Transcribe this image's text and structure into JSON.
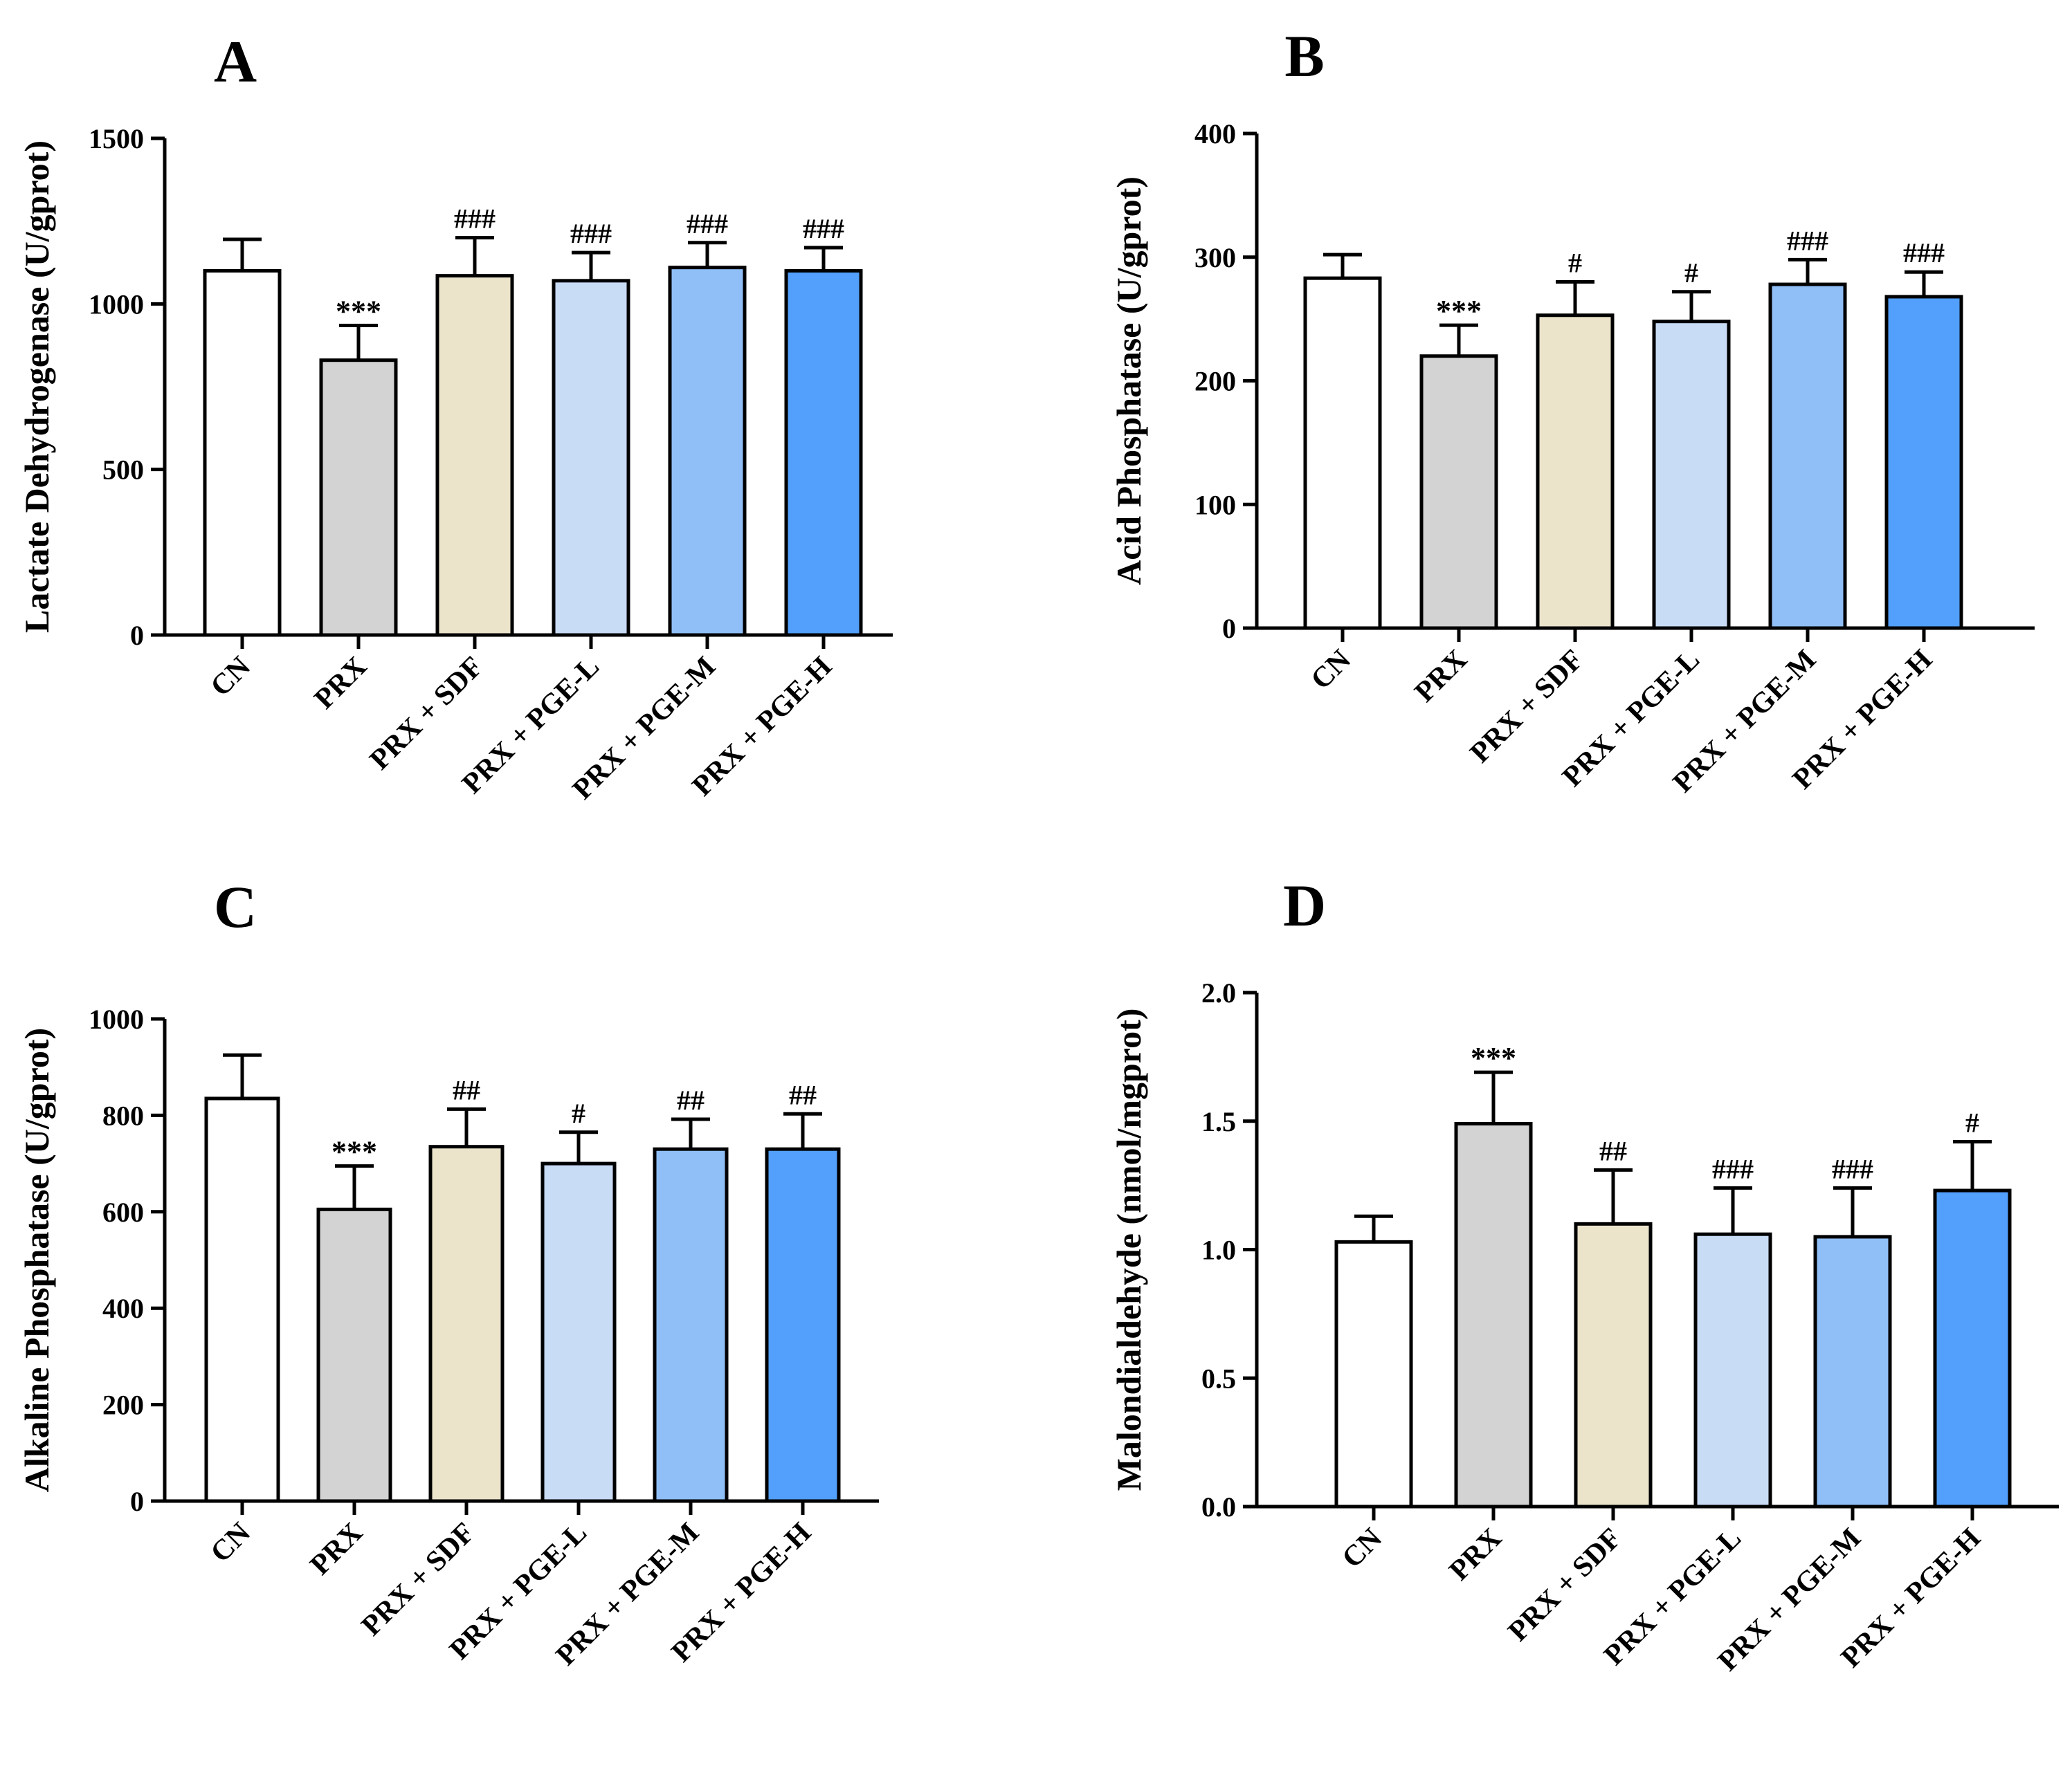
{
  "chart_data": [
    {
      "type": "bar",
      "panel": "A",
      "ylabel": "Lactate Dehydrogenase (U/gprot)",
      "categories": [
        "CN",
        "PRX",
        "PRX + SDF",
        "PRX + PGE-L",
        "PRX + PGE-M",
        "PRX + PGE-H"
      ],
      "values": [
        1100,
        830,
        1085,
        1070,
        1110,
        1100
      ],
      "errors": [
        95,
        105,
        115,
        85,
        75,
        70
      ],
      "annotations": [
        "",
        "***",
        "###",
        "###",
        "###",
        "###"
      ],
      "ylim": [
        0,
        1500
      ],
      "yticks": [
        0,
        500,
        1000,
        1500
      ]
    },
    {
      "type": "bar",
      "panel": "B",
      "ylabel": "Acid Phosphatase (U/gprot)",
      "categories": [
        "CN",
        "PRX",
        "PRX + SDF",
        "PRX + PGE-L",
        "PRX + PGE-M",
        "PRX + PGE-H"
      ],
      "values": [
        283,
        220,
        253,
        248,
        278,
        268
      ],
      "errors": [
        19,
        25,
        27,
        24,
        20,
        20
      ],
      "annotations": [
        "",
        "***",
        "#",
        "#",
        "###",
        "###"
      ],
      "ylim": [
        0,
        400
      ],
      "yticks": [
        0,
        100,
        200,
        300,
        400
      ]
    },
    {
      "type": "bar",
      "panel": "C",
      "ylabel": "Alkaline Phosphatase (U/gprot)",
      "categories": [
        "CN",
        "PRX",
        "PRX + SDF",
        "PRX + PGE-L",
        "PRX + PGE-M",
        "PRX + PGE-H"
      ],
      "values": [
        835,
        605,
        735,
        700,
        730,
        730
      ],
      "errors": [
        90,
        90,
        78,
        65,
        62,
        73
      ],
      "annotations": [
        "",
        "***",
        "##",
        "#",
        "##",
        "##"
      ],
      "ylim": [
        0,
        1000
      ],
      "yticks": [
        0,
        200,
        400,
        600,
        800,
        1000
      ]
    },
    {
      "type": "bar",
      "panel": "D",
      "ylabel": "Malondialdehyde (nmol/mgprot)",
      "categories": [
        "CN",
        "PRX",
        "PRX + SDF",
        "PRX + PGE-L",
        "PRX + PGE-M",
        "PRX + PGE-H"
      ],
      "values": [
        1.03,
        1.49,
        1.1,
        1.06,
        1.05,
        1.23
      ],
      "errors": [
        0.1,
        0.2,
        0.21,
        0.18,
        0.19,
        0.19
      ],
      "annotations": [
        "",
        "***",
        "##",
        "###",
        "###",
        "#"
      ],
      "ylim": [
        0,
        2.0
      ],
      "yticks": [
        "0.0",
        "0.5",
        "1.0",
        "1.5",
        "2.0"
      ]
    }
  ],
  "colors": {
    "bars": [
      "#ffffff",
      "#d3d3d3",
      "#ebe4cb",
      "#c9dcf6",
      "#90bff8",
      "#529ffc"
    ],
    "stroke": "#000000"
  }
}
